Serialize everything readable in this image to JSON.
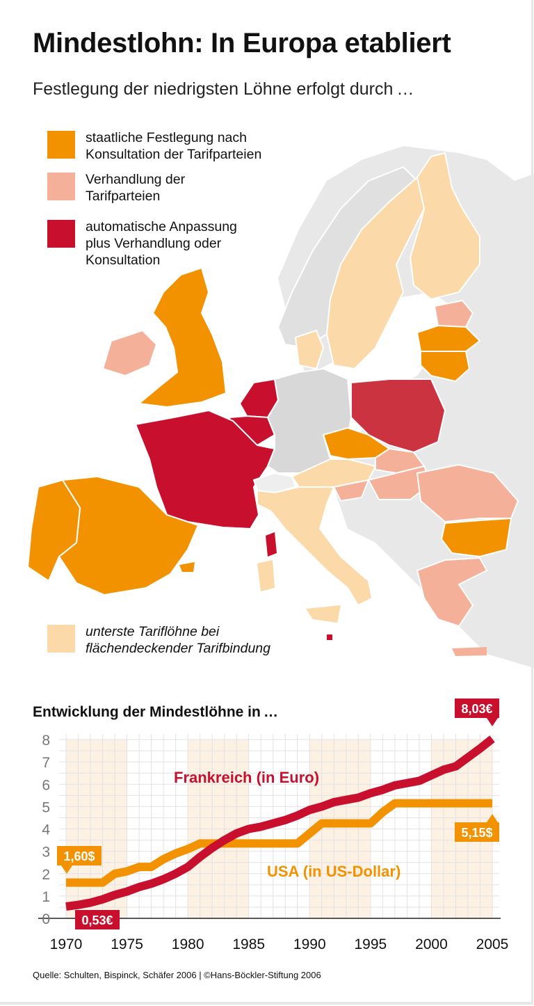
{
  "title": "Mindestlohn: In Europa etabliert",
  "subtitle": "Festlegung der niedrigsten Löhne erfolgt durch …",
  "legend": [
    {
      "label": "staatliche Festlegung nach Konsultation der Tarifparteien",
      "line1": "staatliche Festlegung nach",
      "line2": "Konsultation der Tarifparteien",
      "color": "#f39200"
    },
    {
      "label": "Verhandlung der Tarifparteien",
      "line1": "Verhandlung der",
      "line2": "Tarifparteien",
      "color": "#f5b09a"
    },
    {
      "label": "automatische Anpassung plus Verhandlung oder Konsultation",
      "line1": "automatische Anpassung",
      "line2": "plus Verhandlung oder",
      "line3": "Konsultation",
      "color": "#c8102e"
    },
    {
      "label": "unterste Tariflöhne bei flächendeckender Tarifbindung",
      "line1": "unterste Tariflöhne bei",
      "line2": "flächendeckender Tarifbindung",
      "color": "#fcd9a8"
    }
  ],
  "map_colors": {
    "no_data": "#dcdcdc",
    "background_land": "#e8e8e8",
    "poland": "#cc3340"
  },
  "chart_data": {
    "type": "line",
    "title": "Entwicklung der Mindestlöhne in …",
    "xlabel": "",
    "ylabel": "",
    "xlim": [
      1970,
      2005
    ],
    "ylim": [
      0,
      8
    ],
    "x_ticks": [
      "1970",
      "1975",
      "1980",
      "1985",
      "1990",
      "1995",
      "2000",
      "2005"
    ],
    "y_ticks": [
      "0",
      "1",
      "2",
      "3",
      "4",
      "5",
      "6",
      "7",
      "8"
    ],
    "grid": true,
    "x": [
      1970,
      1971,
      1972,
      1973,
      1974,
      1975,
      1976,
      1977,
      1978,
      1979,
      1980,
      1981,
      1982,
      1983,
      1984,
      1985,
      1986,
      1987,
      1988,
      1989,
      1990,
      1991,
      1992,
      1993,
      1994,
      1995,
      1996,
      1997,
      1998,
      1999,
      2000,
      2001,
      2002,
      2003,
      2004,
      2005
    ],
    "series": [
      {
        "name": "Frankreich (in Euro)",
        "color": "#c8102e",
        "values": [
          0.53,
          0.6,
          0.7,
          0.85,
          1.05,
          1.2,
          1.4,
          1.55,
          1.75,
          2.0,
          2.3,
          2.75,
          3.15,
          3.5,
          3.8,
          4.0,
          4.1,
          4.25,
          4.4,
          4.6,
          4.85,
          5.0,
          5.2,
          5.3,
          5.4,
          5.6,
          5.75,
          5.95,
          6.05,
          6.15,
          6.4,
          6.65,
          6.8,
          7.2,
          7.6,
          8.03
        ],
        "start_label": "0,53€",
        "end_label": "8,03€"
      },
      {
        "name": "USA (in US-Dollar)",
        "color": "#f39200",
        "values": [
          1.6,
          1.6,
          1.6,
          1.6,
          2.0,
          2.1,
          2.3,
          2.3,
          2.65,
          2.9,
          3.1,
          3.35,
          3.35,
          3.35,
          3.35,
          3.35,
          3.35,
          3.35,
          3.35,
          3.35,
          3.8,
          4.25,
          4.25,
          4.25,
          4.25,
          4.25,
          4.75,
          5.15,
          5.15,
          5.15,
          5.15,
          5.15,
          5.15,
          5.15,
          5.15,
          5.15
        ],
        "start_label": "1,60$",
        "end_label": "5,15$"
      }
    ],
    "shaded_periods": [
      [
        1970,
        1975
      ],
      [
        1980,
        1985
      ],
      [
        1990,
        1995
      ],
      [
        2000,
        2005
      ]
    ]
  },
  "source": "Quelle: Schulten, Bispinck, Schäfer 2006 | ©Hans-Böckler-Stiftung 2006"
}
